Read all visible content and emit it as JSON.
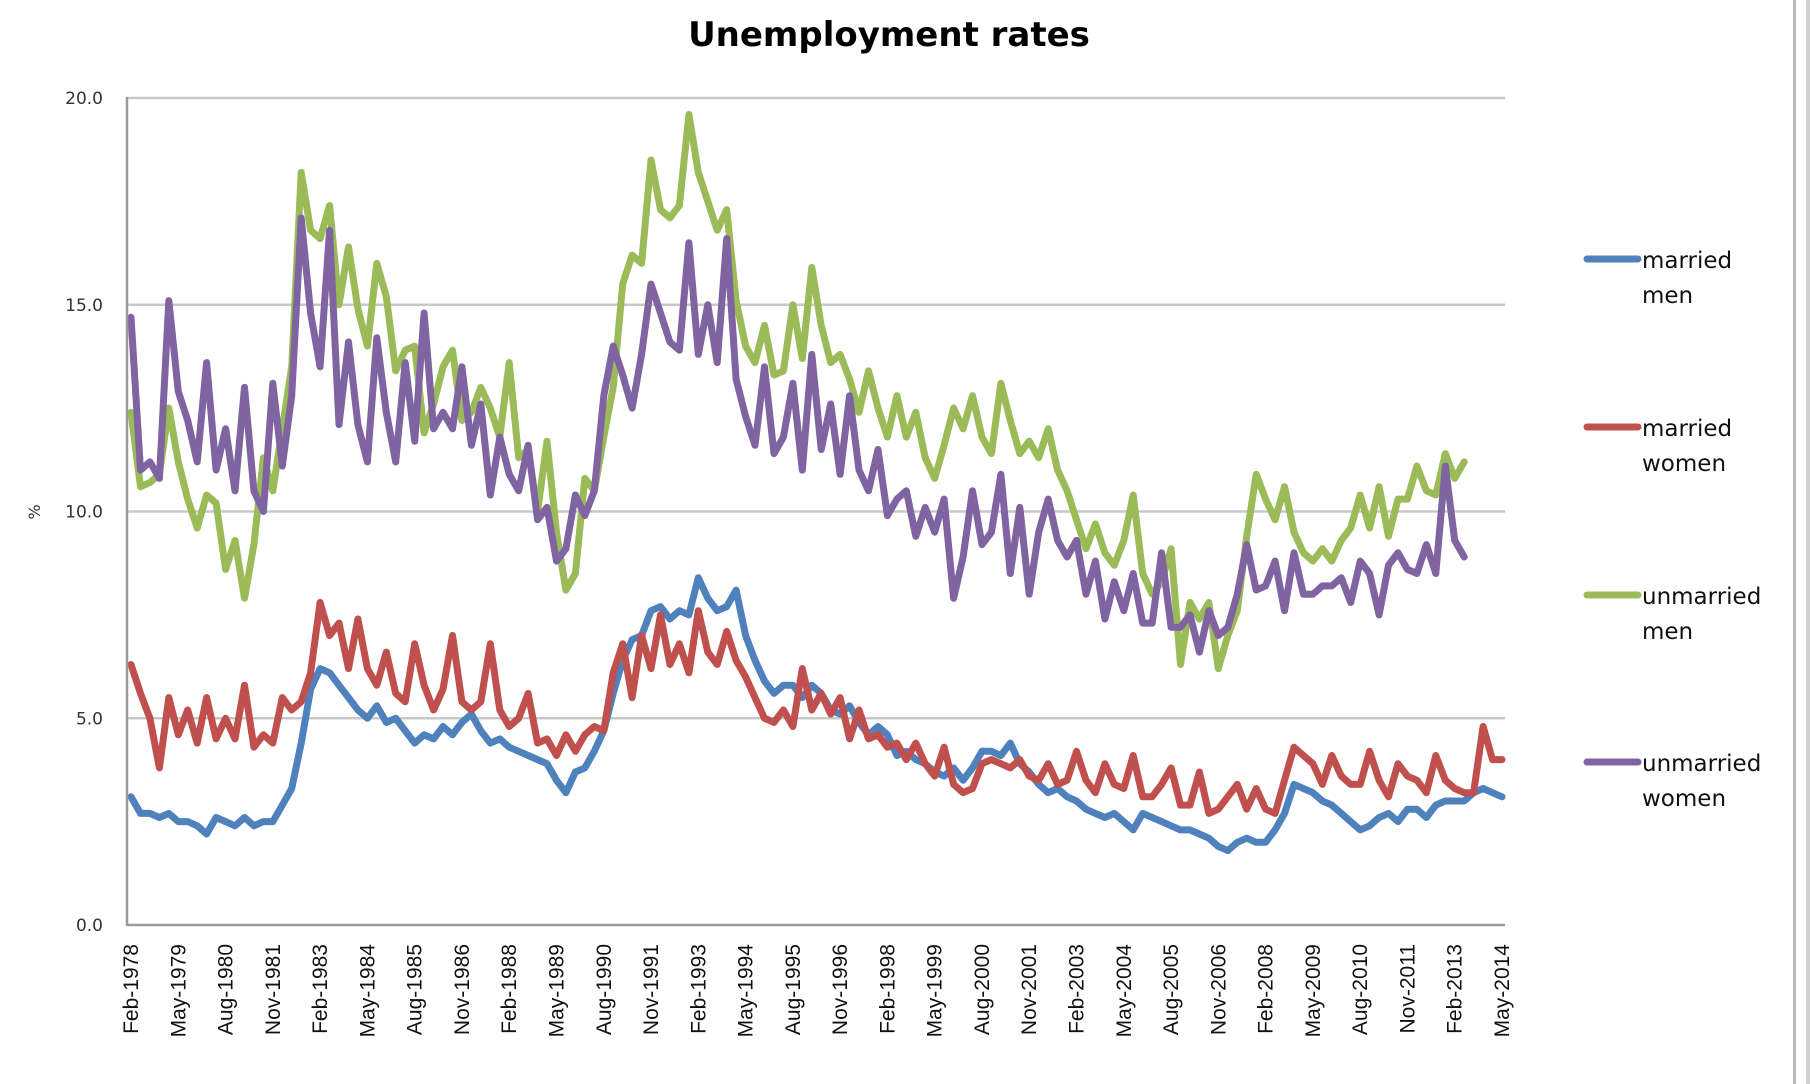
{
  "chart_data": {
    "type": "line",
    "title": "Unemployment rates",
    "xlabel": "",
    "ylabel": "%",
    "ylim": [
      0,
      20
    ],
    "y_ticks": [
      "0.0",
      "5.0",
      "10.0",
      "15.0",
      "20.0"
    ],
    "y_tick_values": [
      0,
      5,
      10,
      15,
      20
    ],
    "grid": true,
    "legend_position": "right",
    "x_start": "Feb-1978",
    "x_end": "May-2014",
    "x_step_months": 3,
    "x_tick_labels": [
      "Feb-1978",
      "May-1979",
      "Aug-1980",
      "Nov-1981",
      "Feb-1983",
      "May-1984",
      "Aug-1985",
      "Nov-1986",
      "Feb-1988",
      "May-1989",
      "Aug-1990",
      "Nov-1991",
      "Feb-1993",
      "May-1994",
      "Aug-1995",
      "Nov-1996",
      "Feb-1998",
      "May-1999",
      "Aug-2000",
      "Nov-2001",
      "Feb-2003",
      "May-2004",
      "Aug-2005",
      "Nov-2006",
      "Feb-2008",
      "May-2009",
      "Aug-2010",
      "Nov-2011",
      "Feb-2013",
      "May-2014"
    ],
    "series": [
      {
        "name": "married men",
        "legend_lines": [
          "married",
          "men"
        ],
        "color": "#4F81BD",
        "values": [
          3.1,
          2.7,
          2.7,
          2.6,
          2.7,
          2.5,
          2.5,
          2.4,
          2.2,
          2.6,
          2.5,
          2.4,
          2.6,
          2.4,
          2.5,
          2.5,
          2.9,
          3.3,
          4.4,
          5.7,
          6.2,
          6.1,
          5.8,
          5.5,
          5.2,
          5.0,
          5.3,
          4.9,
          5.0,
          4.7,
          4.4,
          4.6,
          4.5,
          4.8,
          4.6,
          4.9,
          5.1,
          4.7,
          4.4,
          4.5,
          4.3,
          4.2,
          4.1,
          4.0,
          3.9,
          3.5,
          3.2,
          3.7,
          3.8,
          4.2,
          4.7,
          5.6,
          6.4,
          6.9,
          7.0,
          7.6,
          7.7,
          7.4,
          7.6,
          7.5,
          8.4,
          7.9,
          7.6,
          7.7,
          8.1,
          7.0,
          6.4,
          5.9,
          5.6,
          5.8,
          5.8,
          5.5,
          5.8,
          5.6,
          5.2,
          5.1,
          5.3,
          4.9,
          4.6,
          4.8,
          4.6,
          4.1,
          4.2,
          4.0,
          3.9,
          3.7,
          3.6,
          3.8,
          3.5,
          3.8,
          4.2,
          4.2,
          4.1,
          4.4,
          3.9,
          3.7,
          3.4,
          3.2,
          3.3,
          3.1,
          3.0,
          2.8,
          2.7,
          2.6,
          2.7,
          2.5,
          2.3,
          2.7,
          2.6,
          2.5,
          2.4,
          2.3,
          2.3,
          2.2,
          2.1,
          1.9,
          1.8,
          2.0,
          2.1,
          2.0,
          2.0,
          2.3,
          2.7,
          3.4,
          3.3,
          3.2,
          3.0,
          2.9,
          2.7,
          2.5,
          2.3,
          2.4,
          2.6,
          2.7,
          2.5,
          2.8,
          2.8,
          2.6,
          2.9,
          3.0,
          3.0,
          3.0,
          3.2,
          3.3,
          3.2,
          3.1
        ]
      },
      {
        "name": "married women",
        "legend_lines": [
          "married",
          "women"
        ],
        "color": "#C0504D",
        "values": [
          6.3,
          5.6,
          5.0,
          3.8,
          5.5,
          4.6,
          5.2,
          4.4,
          5.5,
          4.5,
          5.0,
          4.5,
          5.8,
          4.3,
          4.6,
          4.4,
          5.5,
          5.2,
          5.4,
          6.1,
          7.8,
          7.0,
          7.3,
          6.2,
          7.4,
          6.2,
          5.8,
          6.6,
          5.6,
          5.4,
          6.8,
          5.8,
          5.2,
          5.7,
          7.0,
          5.4,
          5.2,
          5.4,
          6.8,
          5.2,
          4.8,
          5.0,
          5.6,
          4.4,
          4.5,
          4.1,
          4.6,
          4.2,
          4.6,
          4.8,
          4.7,
          6.1,
          6.8,
          5.5,
          7.0,
          6.2,
          7.5,
          6.3,
          6.8,
          6.1,
          7.6,
          6.6,
          6.3,
          7.1,
          6.4,
          6.0,
          5.5,
          5.0,
          4.9,
          5.2,
          4.8,
          6.2,
          5.2,
          5.6,
          5.1,
          5.5,
          4.5,
          5.2,
          4.5,
          4.6,
          4.3,
          4.4,
          4.0,
          4.4,
          3.9,
          3.6,
          4.3,
          3.4,
          3.2,
          3.3,
          3.9,
          4.0,
          3.9,
          3.8,
          4.0,
          3.6,
          3.5,
          3.9,
          3.4,
          3.5,
          4.2,
          3.5,
          3.2,
          3.9,
          3.4,
          3.3,
          4.1,
          3.1,
          3.1,
          3.4,
          3.8,
          2.9,
          2.9,
          3.7,
          2.7,
          2.8,
          3.1,
          3.4,
          2.8,
          3.3,
          2.8,
          2.7,
          3.5,
          4.3,
          4.1,
          3.9,
          3.4,
          4.1,
          3.6,
          3.4,
          3.4,
          4.2,
          3.5,
          3.1,
          3.9,
          3.6,
          3.5,
          3.2,
          4.1,
          3.5,
          3.3,
          3.2,
          3.2,
          4.8,
          4.0,
          4.0
        ]
      },
      {
        "name": "unmarried men",
        "legend_lines": [
          "unmarried",
          "men"
        ],
        "color": "#9BBB59",
        "values": [
          12.4,
          10.6,
          10.7,
          10.9,
          12.5,
          11.2,
          10.3,
          9.6,
          10.4,
          10.2,
          8.6,
          9.3,
          7.9,
          9.2,
          11.3,
          10.5,
          12.0,
          13.5,
          18.2,
          16.8,
          16.6,
          17.4,
          15.0,
          16.4,
          14.9,
          14.0,
          16.0,
          15.2,
          13.4,
          13.9,
          14.0,
          11.9,
          12.6,
          13.5,
          13.9,
          12.2,
          12.4,
          13.0,
          12.5,
          11.8,
          13.6,
          11.3,
          11.5,
          10.0,
          11.7,
          9.5,
          8.1,
          8.5,
          10.8,
          10.5,
          11.8,
          13.0,
          15.5,
          16.2,
          16.0,
          18.5,
          17.3,
          17.1,
          17.4,
          19.6,
          18.2,
          17.5,
          16.8,
          17.3,
          15.1,
          14.0,
          13.6,
          14.5,
          13.3,
          13.4,
          15.0,
          13.7,
          15.9,
          14.5,
          13.6,
          13.8,
          13.2,
          12.4,
          13.4,
          12.5,
          11.8,
          12.8,
          11.8,
          12.4,
          11.3,
          10.8,
          11.6,
          12.5,
          12.0,
          12.8,
          11.8,
          11.4,
          13.1,
          12.2,
          11.4,
          11.7,
          11.3,
          12.0,
          11.0,
          10.5,
          9.8,
          9.1,
          9.7,
          9.0,
          8.7,
          9.3,
          10.4,
          8.5,
          8.0,
          8.3,
          9.1,
          6.3,
          7.8,
          7.4,
          7.8,
          6.2,
          7.0,
          7.6,
          9.4,
          10.9,
          10.3,
          9.8,
          10.6,
          9.5,
          9.0,
          8.8,
          9.1,
          8.8,
          9.3,
          9.6,
          10.4,
          9.6,
          10.6,
          9.4,
          10.3,
          10.3,
          11.1,
          10.5,
          10.4,
          11.4,
          10.8,
          11.2
        ]
      },
      {
        "name": "unmarried women",
        "legend_lines": [
          "unmarried",
          "women"
        ],
        "color": "#8064A2",
        "values": [
          14.7,
          11.0,
          11.2,
          10.8,
          15.1,
          12.9,
          12.2,
          11.2,
          13.6,
          11.0,
          12.0,
          10.5,
          13.0,
          10.5,
          10.0,
          13.1,
          11.1,
          12.8,
          17.1,
          14.8,
          13.5,
          16.8,
          12.1,
          14.1,
          12.1,
          11.2,
          14.2,
          12.4,
          11.2,
          13.6,
          11.7,
          14.8,
          12.0,
          12.4,
          12.0,
          13.5,
          11.6,
          12.6,
          10.4,
          11.8,
          10.9,
          10.5,
          11.6,
          9.8,
          10.1,
          8.8,
          9.1,
          10.4,
          9.9,
          10.5,
          12.8,
          14.0,
          13.3,
          12.5,
          13.8,
          15.5,
          14.8,
          14.1,
          13.9,
          16.5,
          13.8,
          15.0,
          13.6,
          16.6,
          13.2,
          12.3,
          11.6,
          13.5,
          11.4,
          11.8,
          13.1,
          11.0,
          13.8,
          11.5,
          12.6,
          10.9,
          12.8,
          11.0,
          10.5,
          11.5,
          9.9,
          10.3,
          10.5,
          9.4,
          10.1,
          9.5,
          10.3,
          7.9,
          8.9,
          10.5,
          9.2,
          9.5,
          10.9,
          8.5,
          10.1,
          8.0,
          9.5,
          10.3,
          9.3,
          8.9,
          9.3,
          8.0,
          8.8,
          7.4,
          8.3,
          7.6,
          8.5,
          7.3,
          7.3,
          9.0,
          7.2,
          7.2,
          7.5,
          6.6,
          7.6,
          7.0,
          7.2,
          8.0,
          9.2,
          8.1,
          8.2,
          8.8,
          7.6,
          9.0,
          8.0,
          8.0,
          8.2,
          8.2,
          8.4,
          7.8,
          8.8,
          8.5,
          7.5,
          8.7,
          9.0,
          8.6,
          8.5,
          9.2,
          8.5,
          11.1,
          9.3,
          8.9
        ]
      }
    ]
  }
}
